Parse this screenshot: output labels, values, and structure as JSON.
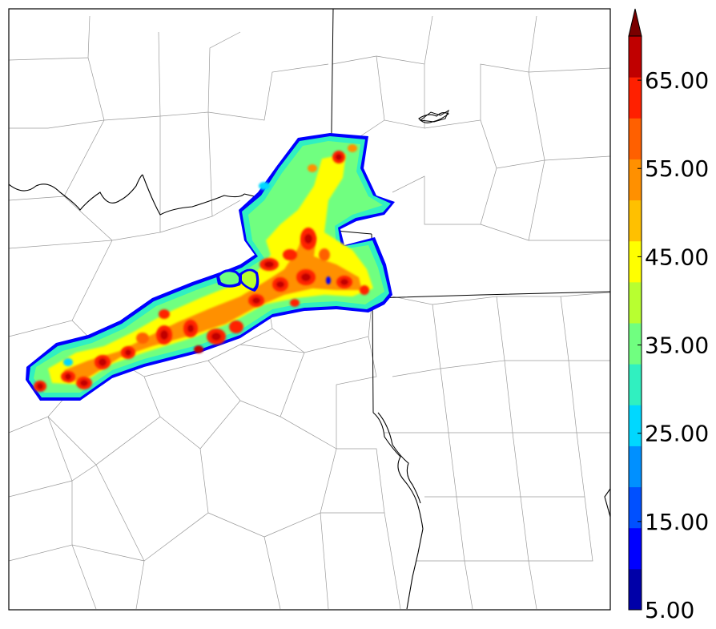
{
  "colorbar": {
    "tick_labels": [
      "5.00",
      "15.00",
      "25.00",
      "35.00",
      "45.00",
      "55.00",
      "65.00"
    ],
    "tick_values": [
      5,
      15,
      25,
      35,
      45,
      55,
      65
    ],
    "min": 5,
    "max": 70,
    "step": 5,
    "extend": "max",
    "colors": [
      "#0000a8",
      "#0000ff",
      "#0050ff",
      "#0090ff",
      "#00d8ff",
      "#30f0c0",
      "#70ff80",
      "#b8ff30",
      "#ffff00",
      "#ffc000",
      "#ff9000",
      "#ff6000",
      "#ff2000",
      "#c00000"
    ],
    "extend_color": "#7a0000"
  },
  "map": {
    "features": [
      "county-boundaries",
      "state-boundaries",
      "rivers",
      "reflectivity-swath"
    ]
  }
}
